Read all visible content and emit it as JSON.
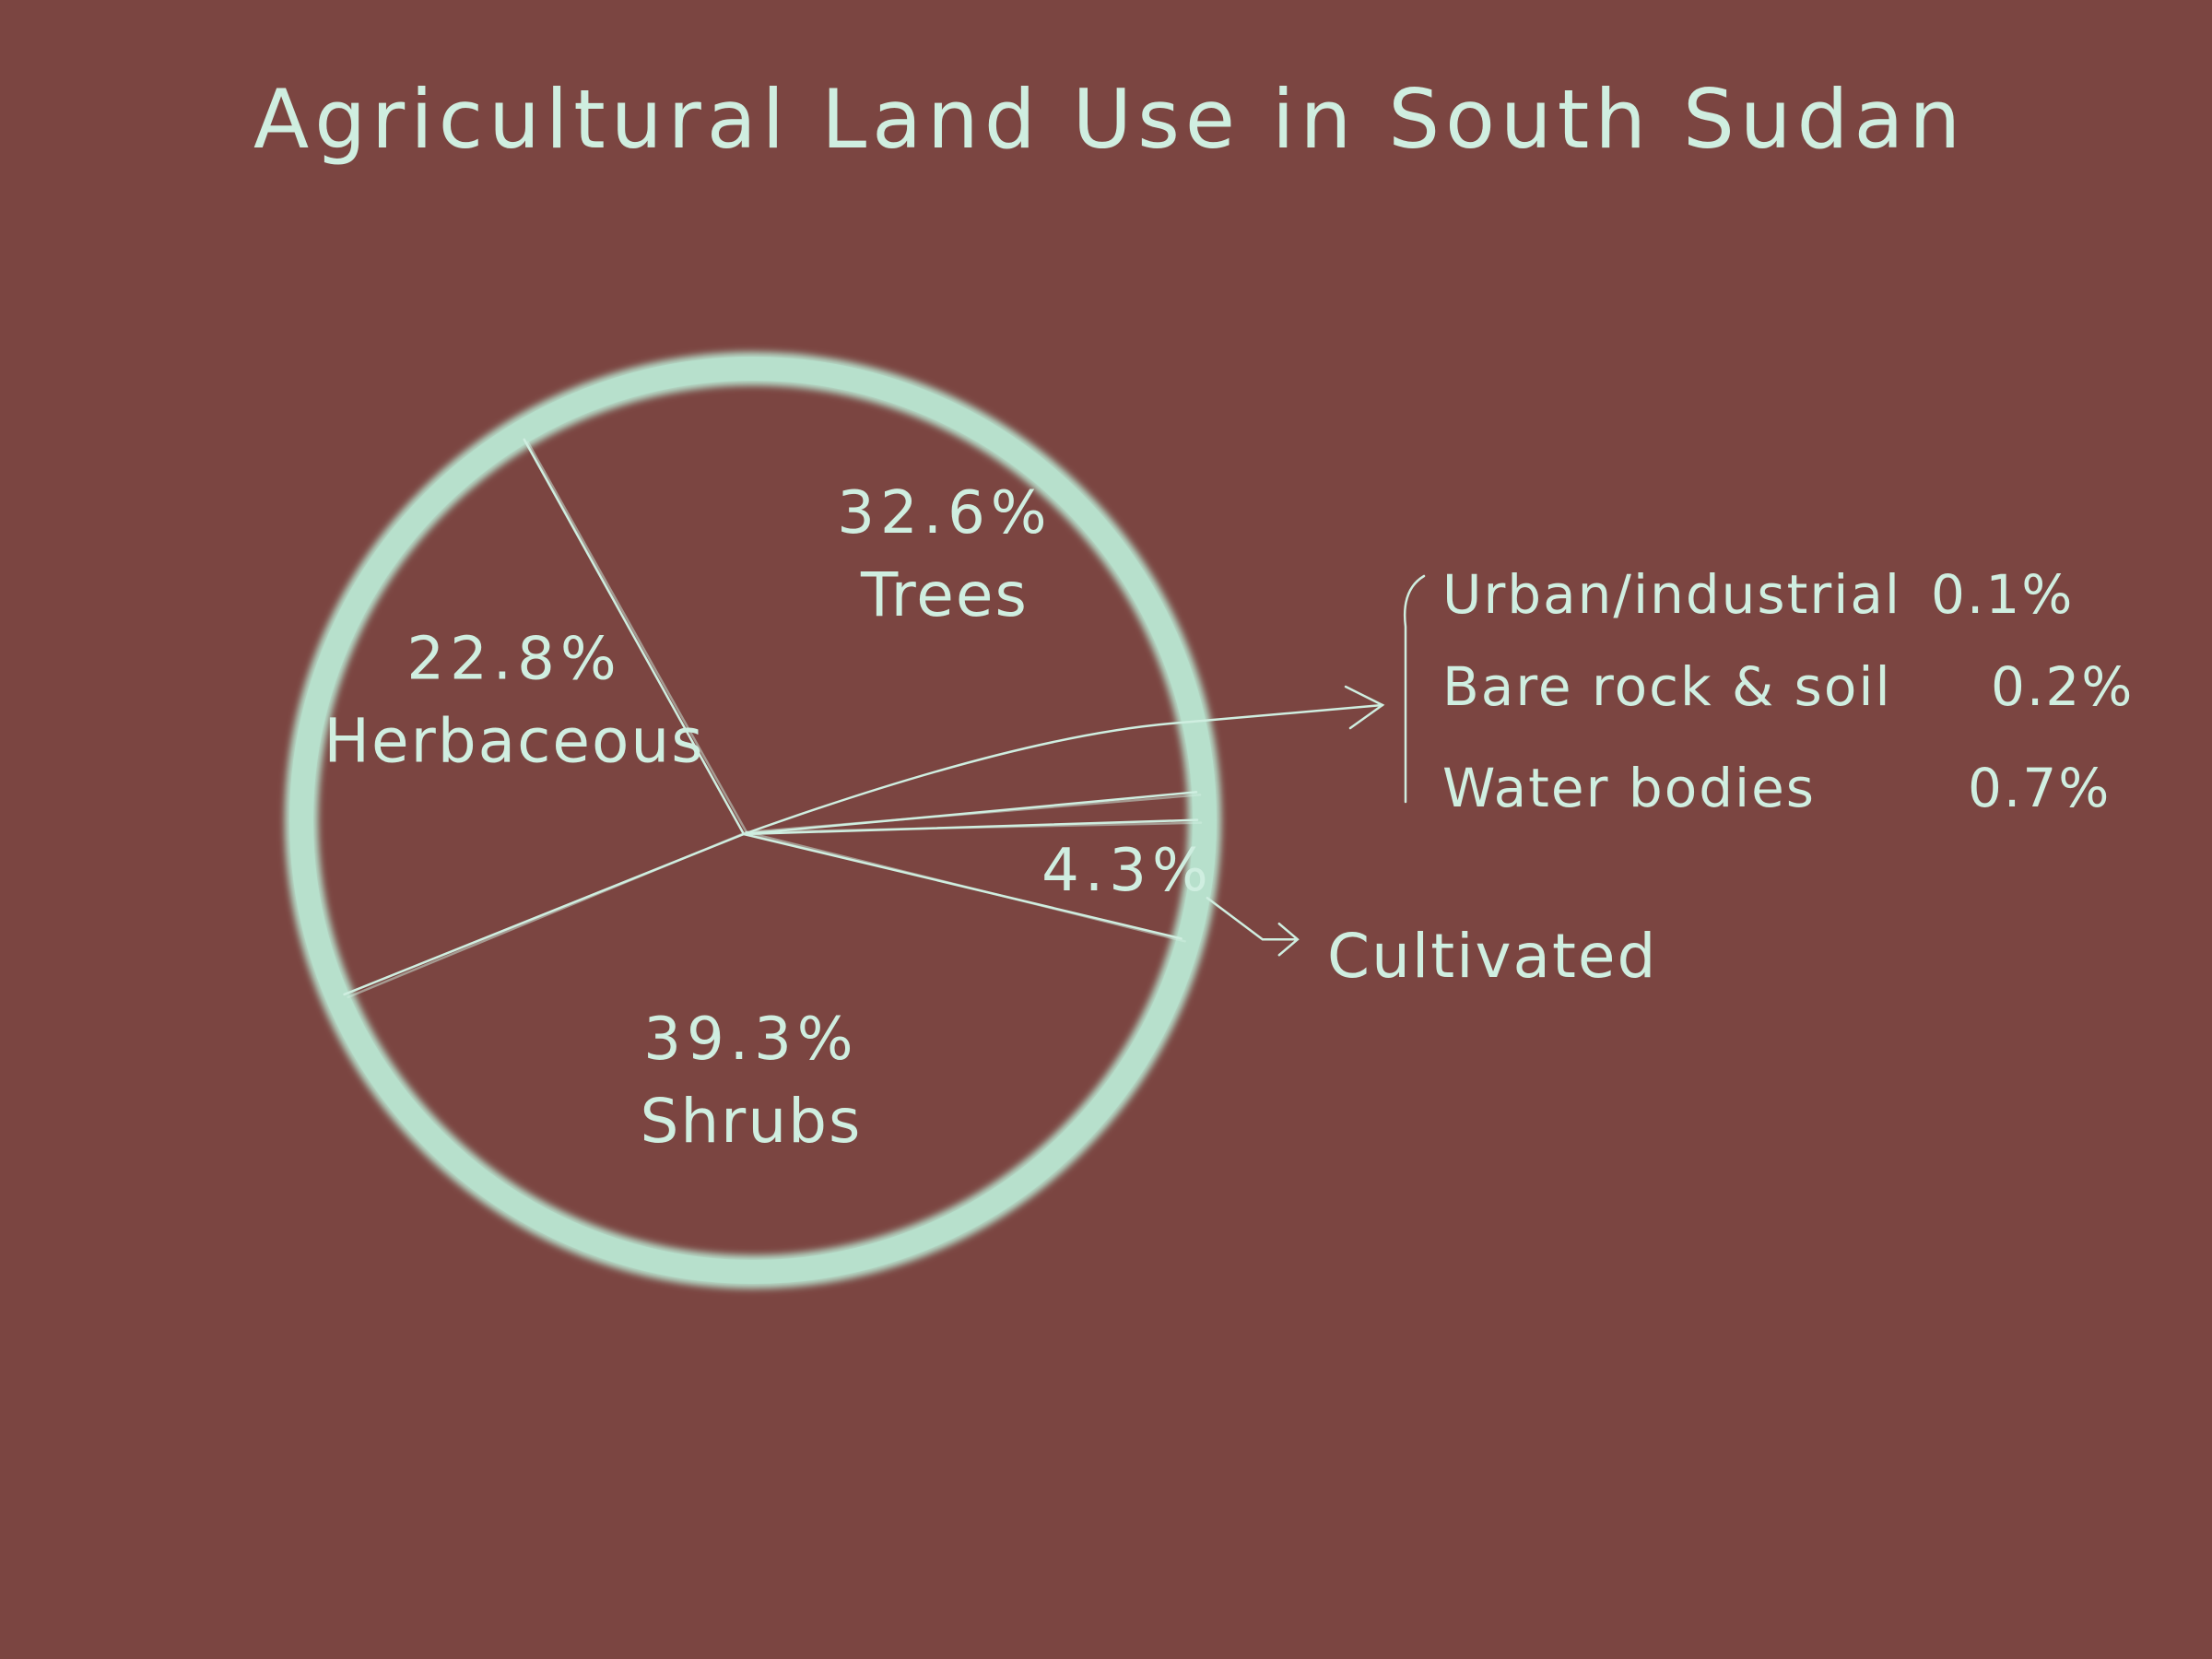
{
  "chart_data": {
    "type": "pie",
    "title": "Agricultural Land Use in South Sudan",
    "slices": [
      {
        "label": "Trees",
        "value": 32.6,
        "value_label": "32.6%"
      },
      {
        "label": "Cultivated",
        "value": 4.3,
        "value_label": "4.3%"
      },
      {
        "label": "Shrubs",
        "value": 39.3,
        "value_label": "39.3%"
      },
      {
        "label": "Herbaceous",
        "value": 22.8,
        "value_label": "22.8%"
      }
    ],
    "grouped_small_slices": [
      {
        "label": "Urban/industrial",
        "value": 0.1,
        "value_label": "0.1%"
      },
      {
        "label": "Bare rock & soil",
        "value": 0.2,
        "value_label": "0.2%"
      },
      {
        "label": "Water bodies",
        "value": 0.7,
        "value_label": "0.7%"
      }
    ],
    "colors": {
      "background": "#7b4541",
      "ink": "#cfeee0",
      "ring": "#b7e0cc"
    }
  }
}
